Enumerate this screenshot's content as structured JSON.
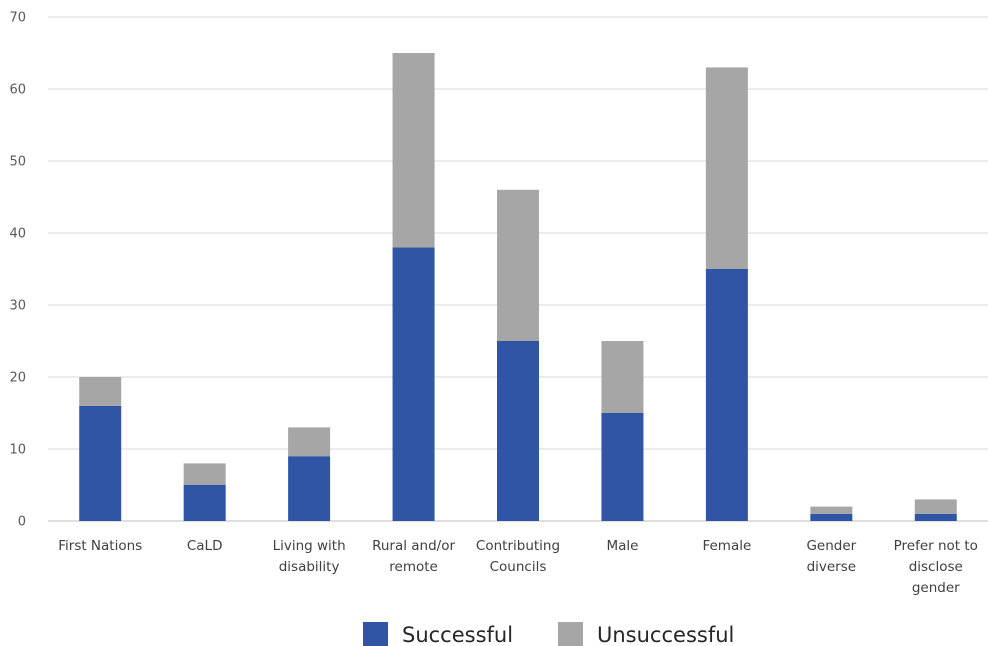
{
  "chart_data": {
    "type": "bar",
    "stacked": true,
    "categories": [
      [
        "First Nations"
      ],
      [
        "CaLD"
      ],
      [
        "Living with",
        "disability"
      ],
      [
        "Rural and/or",
        "remote"
      ],
      [
        "Contributing",
        "Councils"
      ],
      [
        "Male"
      ],
      [
        "Female"
      ],
      [
        "Gender",
        "diverse"
      ],
      [
        "Prefer not to",
        "disclose",
        "gender"
      ]
    ],
    "series": [
      {
        "name": "Successful",
        "color": "#2f55a4",
        "values": [
          16,
          5,
          9,
          38,
          25,
          15,
          35,
          1,
          1
        ]
      },
      {
        "name": "Unsuccessful",
        "color": "#a6a6a6",
        "values": [
          4,
          3,
          4,
          27,
          21,
          10,
          28,
          1,
          2
        ]
      }
    ],
    "ylim": [
      0,
      70
    ],
    "yticks": [
      0,
      10,
      20,
      30,
      40,
      50,
      60,
      70
    ],
    "grid": true,
    "legend_position": "bottom"
  }
}
